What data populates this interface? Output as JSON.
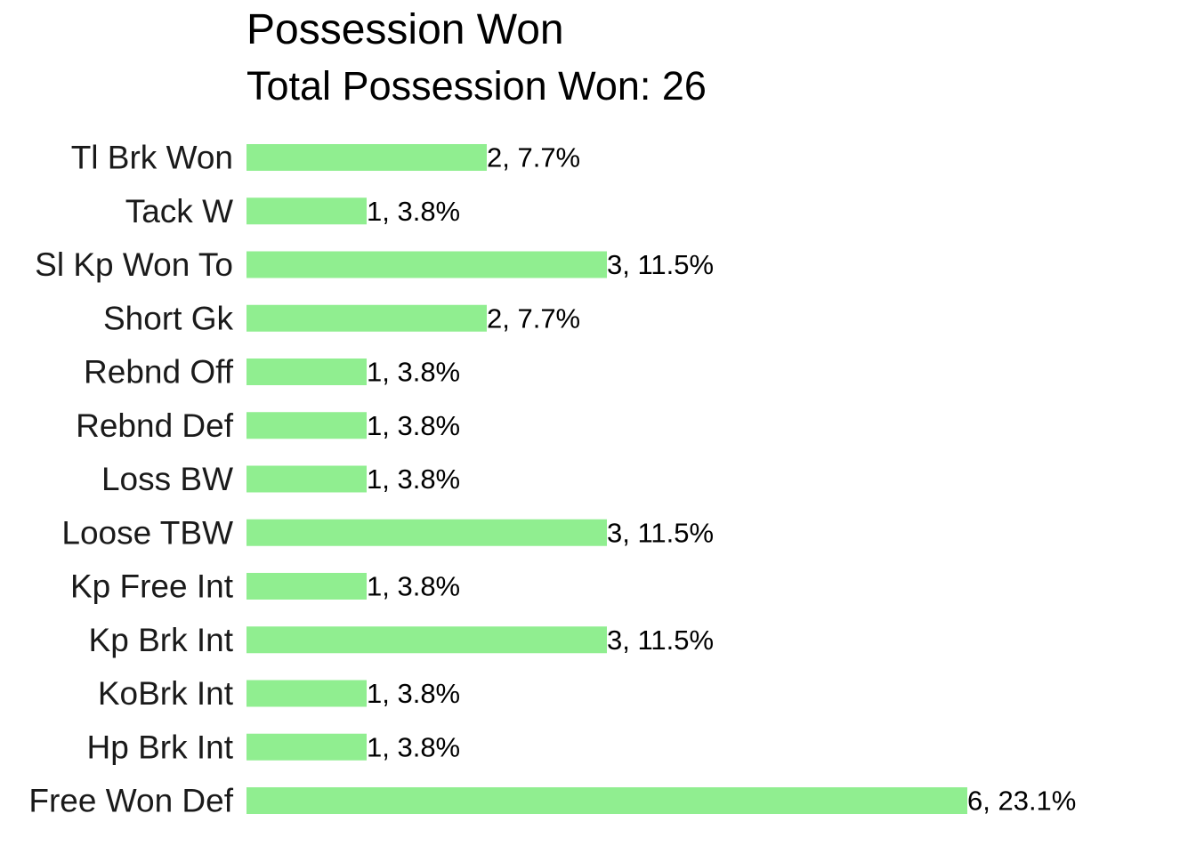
{
  "chart_data": {
    "type": "bar",
    "orientation": "horizontal",
    "title": "Possession Won",
    "subtitle": "Total Possession Won: 26",
    "categories": [
      "Tl Brk Won",
      "Tack W",
      "Sl Kp Won To",
      "Short Gk",
      "Rebnd Off",
      "Rebnd Def",
      "Loss BW",
      "Loose TBW",
      "Kp Free Int",
      "Kp Brk Int",
      "KoBrk Int",
      "Hp Brk Int",
      "Free Won Def"
    ],
    "values": [
      2,
      1,
      3,
      2,
      1,
      1,
      1,
      3,
      1,
      3,
      1,
      1,
      6
    ],
    "data_labels": [
      "2, 7.7%",
      "1, 3.8%",
      "3, 11.5%",
      "2, 7.7%",
      "1, 3.8%",
      "1, 3.8%",
      "1, 3.8%",
      "3, 11.5%",
      "1, 3.8%",
      "3, 11.5%",
      "1, 3.8%",
      "1, 3.8%",
      "6, 23.1%"
    ],
    "bar_color": "#90ee90",
    "grid": false,
    "legend": "none",
    "xlabel": "",
    "ylabel": ""
  }
}
